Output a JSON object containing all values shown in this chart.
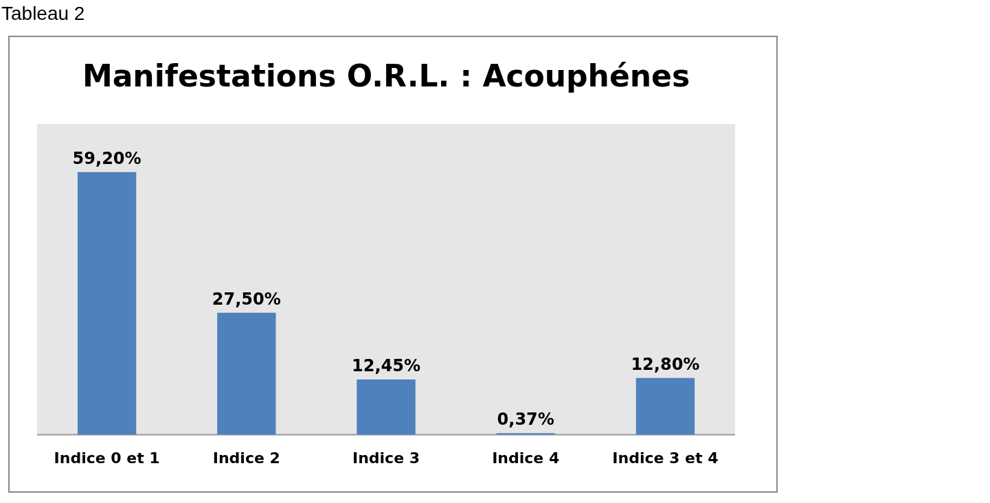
{
  "chart_data": {
    "type": "bar",
    "title": "Manifestations O.R.L. : Acouphénes",
    "annotations": [
      "Tableau 2"
    ],
    "categories": [
      "Indice 0 et 1",
      "Indice 2",
      "Indice 3",
      "Indice 4",
      "Indice 3 et 4"
    ],
    "values": [
      59.2,
      27.5,
      12.45,
      0.37,
      12.8
    ],
    "value_labels": [
      "59,20%",
      "27,50%",
      "12,45%",
      "0,37%",
      "12,80%"
    ],
    "color": "#4f81bd",
    "tick_labels": "x"
  }
}
